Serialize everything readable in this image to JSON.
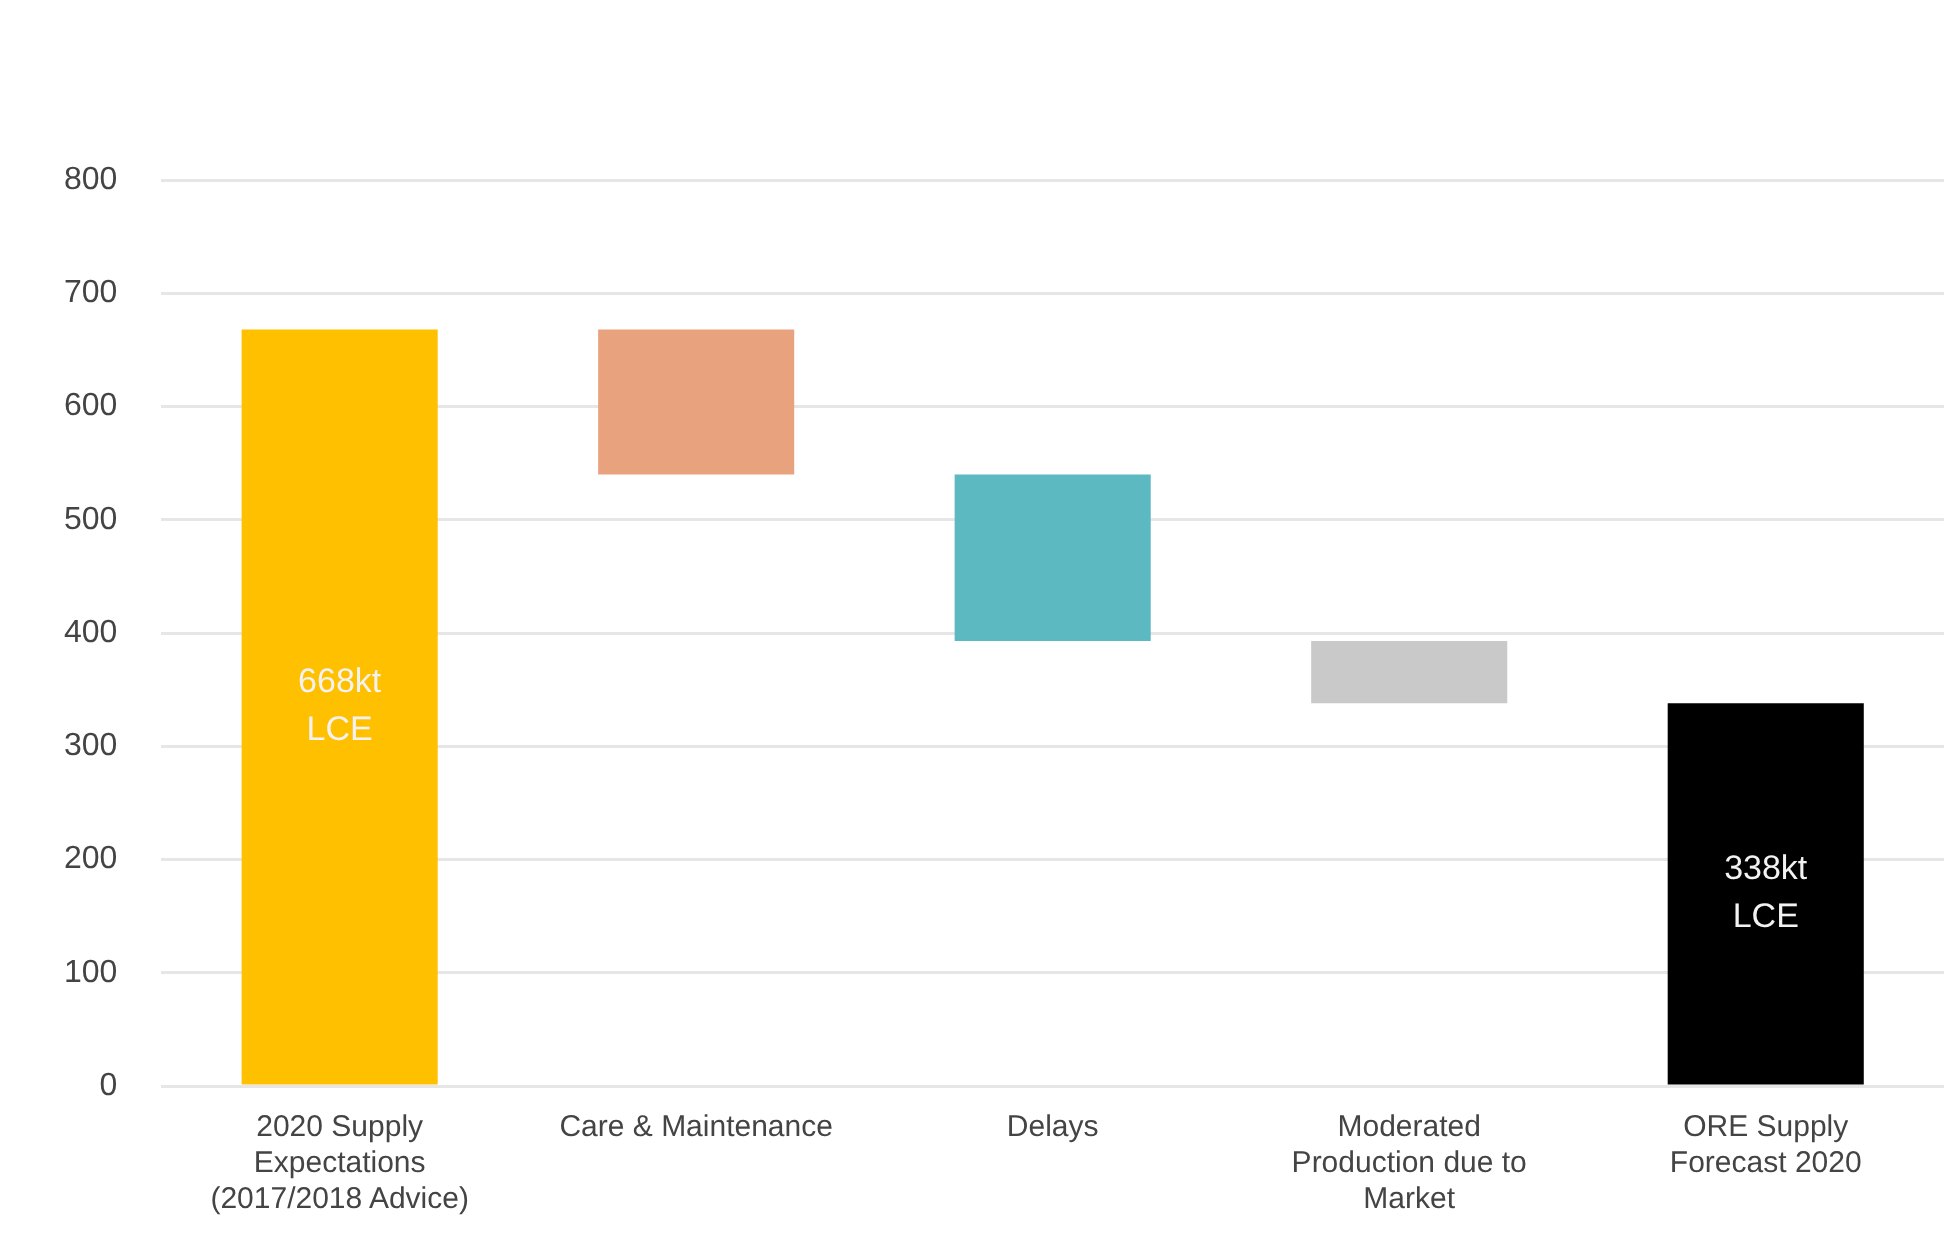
{
  "chart_data": {
    "type": "bar",
    "categories": [
      "2020 Supply Expectations (2017/2018 Advice)",
      "Care & Maintenance",
      "Delays",
      "Moderated Production due to Market",
      "ORE Supply Forecast 2020"
    ],
    "values": [
      668,
      128,
      147,
      55,
      338
    ],
    "base": [
      0,
      540,
      393,
      338,
      0
    ],
    "colors": [
      "#ffc000",
      "#e9a27e",
      "#5cb9c1",
      "#c9c9c9",
      "#000000"
    ],
    "value_labels": [
      "668kt LCE",
      null,
      null,
      null,
      "338kt LCE"
    ],
    "ylim": [
      0,
      800
    ],
    "yticks": [
      0,
      100,
      200,
      300,
      400,
      500,
      600,
      700,
      800
    ],
    "grid": "y",
    "legend": false
  }
}
